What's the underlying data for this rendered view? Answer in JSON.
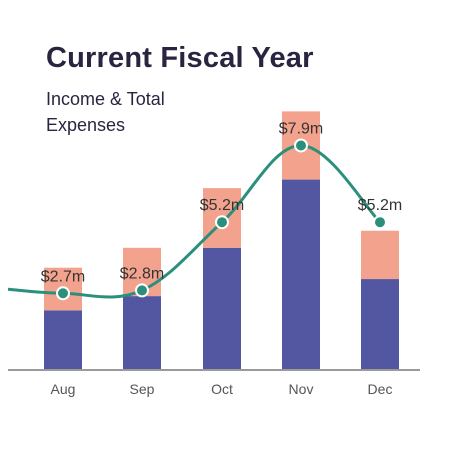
{
  "header": {
    "title": "Current Fiscal Year",
    "subtitle": "Income & Total Expenses"
  },
  "colors": {
    "expenses": "#5356a1",
    "income": "#f3a38d",
    "line": "#2a8f7b",
    "axis": "#9a9a9a"
  },
  "chart_data": {
    "type": "bar",
    "title": "Current Fiscal Year",
    "subtitle": "Income & Total Expenses",
    "categories": [
      "Aug",
      "Sep",
      "Oct",
      "Nov",
      "Dec"
    ],
    "series": [
      {
        "type": "stacked-bar",
        "values": [
          2.1,
          2.6,
          4.3,
          6.7,
          3.2
        ]
      },
      {
        "type": "stacked-bar",
        "values": [
          1.5,
          1.7,
          2.1,
          2.4,
          1.7
        ]
      },
      {
        "type": "line",
        "values": [
          2.7,
          2.8,
          5.2,
          7.9,
          5.2
        ],
        "labels": [
          "$2.7m",
          "$2.8m",
          "$5.2m",
          "$7.9m",
          "$5.2m"
        ]
      }
    ],
    "ylim": [
      0,
      9.5
    ],
    "grid": false,
    "legend": "none",
    "xlabel": "",
    "ylabel": ""
  }
}
